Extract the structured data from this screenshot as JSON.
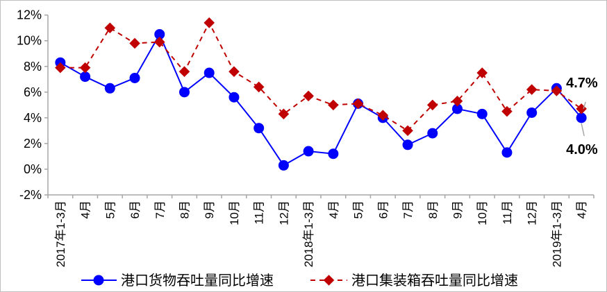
{
  "chart_data": {
    "type": "line",
    "title": "",
    "xlabel": "",
    "ylabel": "",
    "ylim": [
      -2,
      12
    ],
    "yticks": [
      "-2%",
      "0%",
      "2%",
      "4%",
      "6%",
      "8%",
      "10%",
      "12%"
    ],
    "grid": false,
    "legend_position": "bottom",
    "categories": [
      "2017年1-3月",
      "4月",
      "5月",
      "6月",
      "7月",
      "8月",
      "9月",
      "10月",
      "11月",
      "12月",
      "2018年1-3月",
      "4月",
      "5月",
      "6月",
      "7月",
      "8月",
      "9月",
      "10月",
      "11月",
      "12月",
      "2019年1-3月",
      "4月"
    ],
    "series": [
      {
        "name": "港口货物吞吐量同比增速",
        "color": "#0000FF",
        "style": "solid-circle",
        "values": [
          8.3,
          7.2,
          6.3,
          7.1,
          10.5,
          6.0,
          7.5,
          5.6,
          3.2,
          0.3,
          1.4,
          1.2,
          5.1,
          4.0,
          1.9,
          2.8,
          4.7,
          4.3,
          1.3,
          4.4,
          6.3,
          4.0
        ]
      },
      {
        "name": "港口集装箱吞吐量同比增速",
        "color": "#C00000",
        "style": "dashed-diamond",
        "values": [
          7.9,
          7.9,
          11.0,
          9.8,
          9.9,
          7.6,
          11.4,
          7.6,
          6.4,
          4.3,
          5.7,
          5.0,
          5.1,
          4.2,
          3.0,
          5.0,
          5.3,
          7.5,
          4.5,
          6.2,
          6.1,
          4.7
        ]
      }
    ],
    "annotations": [
      {
        "text": "4.7%",
        "series": 1,
        "index": 21
      },
      {
        "text": "4.0%",
        "series": 0,
        "index": 21
      }
    ]
  }
}
